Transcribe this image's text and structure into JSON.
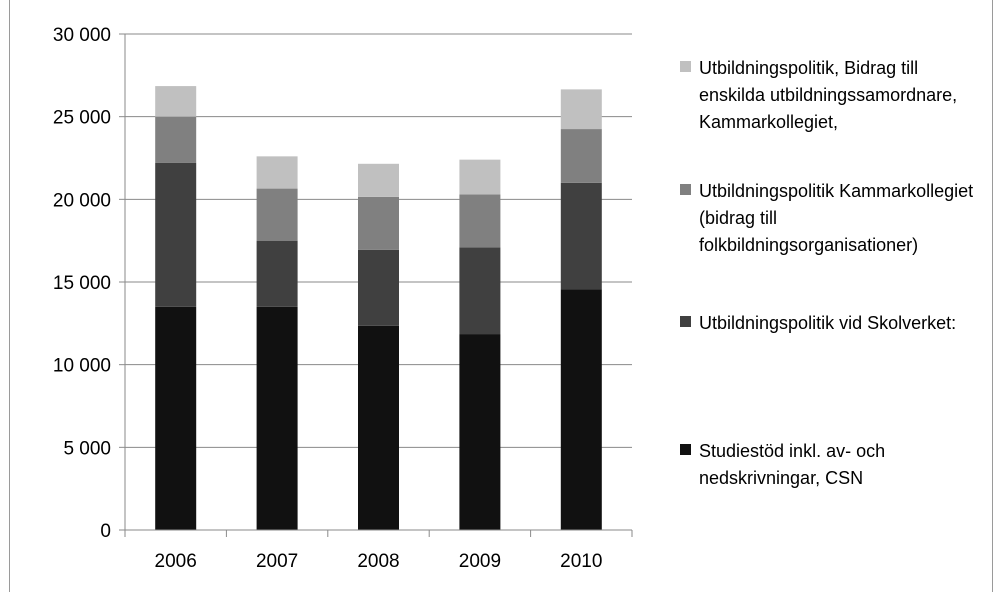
{
  "chart_data": {
    "type": "bar",
    "stacked": true,
    "categories": [
      "2006",
      "2007",
      "2008",
      "2009",
      "2010"
    ],
    "ylim": [
      0,
      30000
    ],
    "yticks": [
      0,
      5000,
      10000,
      15000,
      20000,
      25000,
      30000
    ],
    "ytick_labels": [
      "0",
      "5 000",
      "10 000",
      "15 000",
      "20 000",
      "25 000",
      "30 000"
    ],
    "grid": true,
    "legend_position": "right",
    "title": "",
    "xlabel": "",
    "ylabel": "",
    "series": [
      {
        "name": "Studiestöd inkl. av- och nedskrivningar, CSN",
        "color": "#111111",
        "values": [
          13500,
          13500,
          12350,
          11850,
          14550
        ]
      },
      {
        "name": "Utbildningspolitik vid Skolverket:",
        "color": "#404040",
        "values": [
          8700,
          4000,
          4600,
          5250,
          6450
        ]
      },
      {
        "name": "Utbildningspolitik Kammarkollegiet (bidrag till folkbildningsorganisationer)",
        "color": "#808080",
        "values": [
          2800,
          3150,
          3200,
          3200,
          3250
        ]
      },
      {
        "name": "Utbildningspolitik, Bidrag till enskilda utbildningssamordnare, Kammarkollegiet,",
        "color": "#c0c0c0",
        "values": [
          1850,
          1950,
          2000,
          2100,
          2400
        ]
      }
    ]
  }
}
